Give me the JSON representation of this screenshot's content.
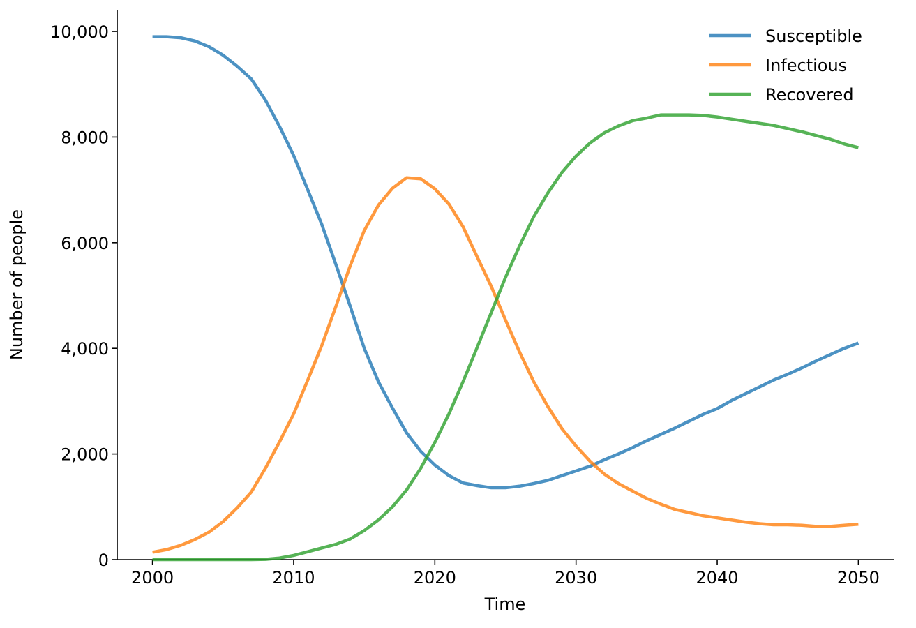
{
  "chart_data": {
    "type": "line",
    "x_label": "Time",
    "y_label": "Number of people",
    "x": [
      2000,
      2001,
      2002,
      2003,
      2004,
      2005,
      2006,
      2007,
      2008,
      2009,
      2010,
      2011,
      2012,
      2013,
      2014,
      2015,
      2016,
      2017,
      2018,
      2019,
      2020,
      2021,
      2022,
      2023,
      2024,
      2025,
      2026,
      2027,
      2028,
      2029,
      2030,
      2031,
      2032,
      2033,
      2034,
      2035,
      2036,
      2037,
      2038,
      2039,
      2040,
      2041,
      2042,
      2043,
      2044,
      2045,
      2046,
      2047,
      2048,
      2049,
      2050
    ],
    "series": [
      {
        "name": "Susceptible",
        "color": "#1f77b4",
        "values": [
          9900,
          9900,
          9880,
          9820,
          9710,
          9550,
          9340,
          9100,
          8700,
          8200,
          7650,
          7000,
          6340,
          5580,
          4800,
          4000,
          3370,
          2870,
          2400,
          2050,
          1790,
          1590,
          1450,
          1400,
          1360,
          1360,
          1390,
          1440,
          1500,
          1590,
          1680,
          1770,
          1890,
          2000,
          2120,
          2250,
          2370,
          2490,
          2620,
          2750,
          2860,
          3010,
          3140,
          3270,
          3400,
          3510,
          3630,
          3760,
          3880,
          4000,
          4100
        ]
      },
      {
        "name": "Infectious",
        "color": "#ff7f0e",
        "values": [
          140,
          190,
          270,
          380,
          520,
          720,
          980,
          1280,
          1730,
          2230,
          2760,
          3400,
          4060,
          4800,
          5560,
          6230,
          6710,
          7030,
          7230,
          7210,
          7020,
          6730,
          6300,
          5730,
          5170,
          4540,
          3930,
          3370,
          2900,
          2480,
          2150,
          1860,
          1620,
          1440,
          1300,
          1160,
          1050,
          950,
          890,
          830,
          790,
          750,
          710,
          680,
          660,
          660,
          650,
          630,
          630,
          650,
          670
        ]
      },
      {
        "name": "Recovered",
        "color": "#2ca02c",
        "values": [
          0,
          0,
          0,
          0,
          0,
          0,
          0,
          0,
          5,
          30,
          80,
          150,
          220,
          290,
          390,
          550,
          750,
          1000,
          1320,
          1730,
          2220,
          2760,
          3370,
          4020,
          4680,
          5340,
          5940,
          6490,
          6940,
          7330,
          7640,
          7890,
          8080,
          8210,
          8310,
          8360,
          8420,
          8420,
          8420,
          8410,
          8380,
          8340,
          8300,
          8260,
          8220,
          8160,
          8100,
          8030,
          7960,
          7870,
          7800
        ]
      }
    ],
    "xlim": [
      1997.5,
      2052.5
    ],
    "xticks": [
      2000,
      2010,
      2020,
      2030,
      2040,
      2050
    ],
    "ylim": [
      0,
      10410
    ],
    "yticks": [
      0,
      {
        "value": 2000,
        "label": "2,000"
      },
      {
        "value": 4000,
        "label": "4,000"
      },
      {
        "value": 6000,
        "label": "6,000"
      },
      {
        "value": 8000,
        "label": "8,000"
      },
      {
        "value": 10000,
        "label": "10,000"
      }
    ],
    "legend": "upper right",
    "grid": false,
    "line_alpha": 0.8
  }
}
